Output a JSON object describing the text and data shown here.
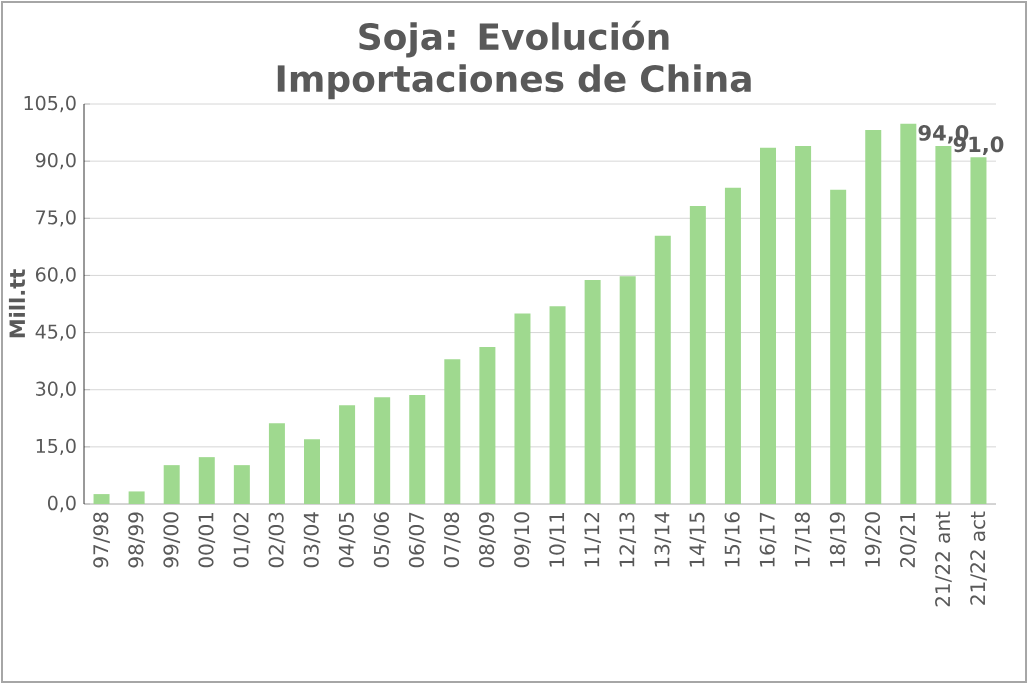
{
  "chart_data": {
    "type": "bar",
    "title": "Soja: Evolución Importaciones de China",
    "ylabel": "Mill.tt",
    "categories": [
      "97/98",
      "98/99",
      "99/00",
      "00/01",
      "01/02",
      "02/03",
      "03/04",
      "04/05",
      "05/06",
      "06/07",
      "07/08",
      "08/09",
      "09/10",
      "10/11",
      "11/12",
      "12/13",
      "13/14",
      "14/15",
      "15/16",
      "16/17",
      "17/18",
      "18/19",
      "19/20",
      "20/21",
      "21/22 ant",
      "21/22 act"
    ],
    "values": [
      2.6,
      3.3,
      10.2,
      12.3,
      10.2,
      21.2,
      17.0,
      25.9,
      28.0,
      28.6,
      38.0,
      41.2,
      50.0,
      51.9,
      58.8,
      59.8,
      70.4,
      78.2,
      83.0,
      93.5,
      94.0,
      82.5,
      98.2,
      99.8,
      94.0,
      91.0
    ],
    "value_labels": [
      null,
      null,
      null,
      null,
      null,
      null,
      null,
      null,
      null,
      null,
      null,
      null,
      null,
      null,
      null,
      null,
      null,
      null,
      null,
      null,
      null,
      null,
      null,
      null,
      "94,0",
      "91,0"
    ],
    "color": "#9fd98f",
    "ylim": [
      0,
      105
    ],
    "yticks": [
      {
        "value": 0,
        "label": "0,0"
      },
      {
        "value": 15,
        "label": "15,0"
      },
      {
        "value": 30,
        "label": "30,0"
      },
      {
        "value": 45,
        "label": "45,0"
      },
      {
        "value": 60,
        "label": "60,0"
      },
      {
        "value": 75,
        "label": "75,0"
      },
      {
        "value": 90,
        "label": "90,0"
      },
      {
        "value": 105,
        "label": "105,0"
      }
    ],
    "grid": "y"
  }
}
